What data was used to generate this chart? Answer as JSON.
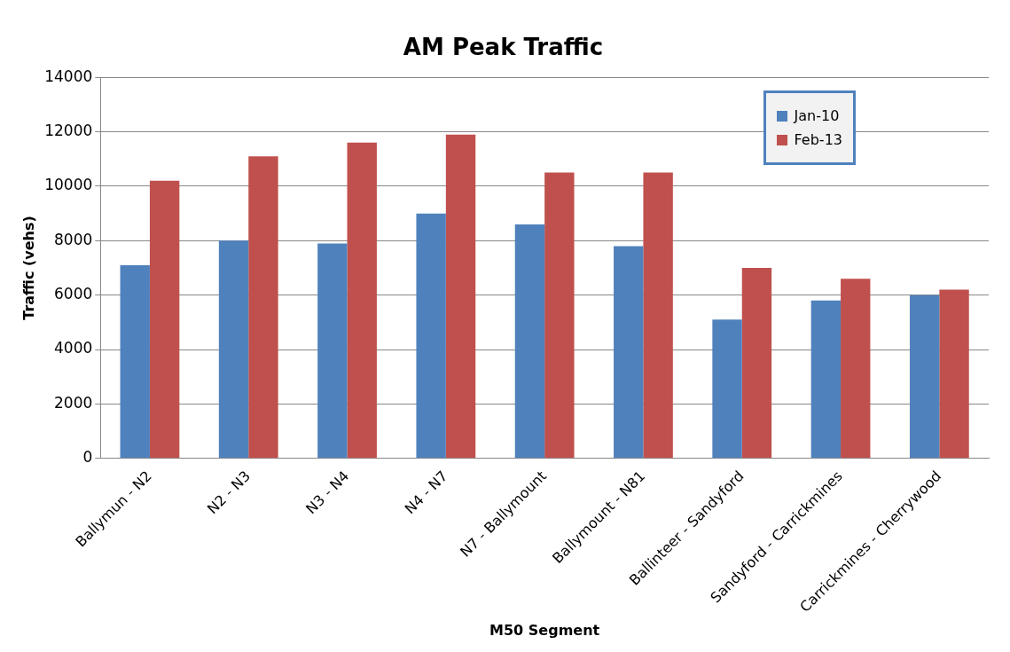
{
  "chart_data": {
    "type": "bar",
    "title": "AM Peak Traffic",
    "xlabel": "M50 Segment",
    "ylabel": "Traffic (vehs)",
    "categories": [
      "Ballymun - N2",
      "N2 - N3",
      "N3 - N4",
      "N4 - N7",
      "N7 - Ballymount",
      "Ballymount - N81",
      "Ballinteer - Sandyford",
      "Sandyford - Carrickmines",
      "Carrickmines - Cherrywood"
    ],
    "series": [
      {
        "name": "Jan-10",
        "color": "#4f81bd",
        "values": [
          7100,
          8000,
          7900,
          9000,
          8600,
          7800,
          5100,
          5800,
          6000
        ]
      },
      {
        "name": "Feb-13",
        "color": "#c0504d",
        "values": [
          10200,
          11100,
          11600,
          11900,
          10500,
          10500,
          7000,
          6600,
          6200
        ]
      }
    ],
    "ylim": [
      0,
      14000
    ],
    "yticks": [
      0,
      2000,
      4000,
      6000,
      8000,
      10000,
      12000,
      14000
    ],
    "grid": "y",
    "legend": "top right"
  }
}
